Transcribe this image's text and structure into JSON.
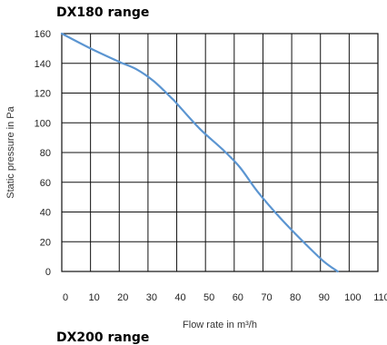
{
  "chart_data": {
    "type": "line",
    "title": "DX180 range",
    "xlabel": "Flow rate in m³/h",
    "ylabel": "Static pressure in Pa",
    "xlim": [
      0,
      110
    ],
    "ylim": [
      0,
      160
    ],
    "x_ticks": [
      0,
      10,
      20,
      30,
      40,
      50,
      60,
      70,
      80,
      90,
      100,
      110
    ],
    "y_ticks": [
      0,
      20,
      40,
      60,
      80,
      100,
      120,
      140,
      160
    ],
    "grid": true,
    "series": [
      {
        "color": "#5b95d1",
        "x": [
          0,
          10,
          20,
          26,
          32,
          38,
          40,
          48,
          56,
          62,
          68,
          76,
          84,
          91,
          96
        ],
        "y": [
          160,
          150,
          141,
          136,
          128,
          117,
          113,
          96,
          82,
          70,
          54,
          36,
          20,
          7,
          0
        ]
      }
    ]
  },
  "next_section": {
    "title": "DX200 range"
  }
}
